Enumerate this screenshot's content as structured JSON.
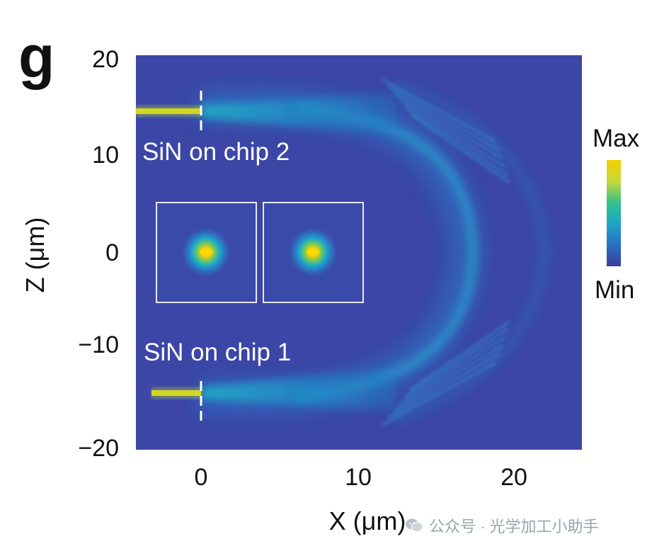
{
  "panel_label": "g",
  "chart_data": {
    "type": "heatmap",
    "title": "",
    "xlabel": "X (μm)",
    "ylabel": "Z (μm)",
    "xlim": [
      -4.2,
      24.5
    ],
    "ylim": [
      -20.5,
      20.8
    ],
    "x_ticks": [
      0,
      10,
      20
    ],
    "x_tick_labels": [
      "0",
      "10",
      "20"
    ],
    "y_ticks": [
      20,
      10,
      0,
      -10,
      -20
    ],
    "y_tick_labels": [
      "20",
      "10",
      "0",
      "−10",
      "−20"
    ],
    "grid": false,
    "colorbar": {
      "max_label": "Max",
      "min_label": "Min",
      "colors": [
        "#3a3d99",
        "#2a6fc4",
        "#1ea5c9",
        "#33c28a",
        "#c6d83a",
        "#f2d200"
      ]
    },
    "annotations": [
      {
        "text": "SiN on chip 2",
        "x": -3.8,
        "z": 10.3
      },
      {
        "text": "SiN on chip 1",
        "x": -3.8,
        "z": -10.3
      }
    ],
    "waveguides": [
      {
        "name": "SiN on chip 2",
        "z": 14.7,
        "x_start": -4.2,
        "x_end": 0
      },
      {
        "name": "SiN on chip 1",
        "z": -14.7,
        "x_start": -4.2,
        "x_end": 0
      }
    ],
    "interface_x": 0,
    "mode_insets": [
      {
        "x_center": 0.3,
        "z_center": 0
      },
      {
        "x_center": 7.2,
        "z_center": 0
      }
    ]
  },
  "watermark": {
    "text": "公众号 · 光学加工小助手",
    "icon": "wechat-icon"
  }
}
